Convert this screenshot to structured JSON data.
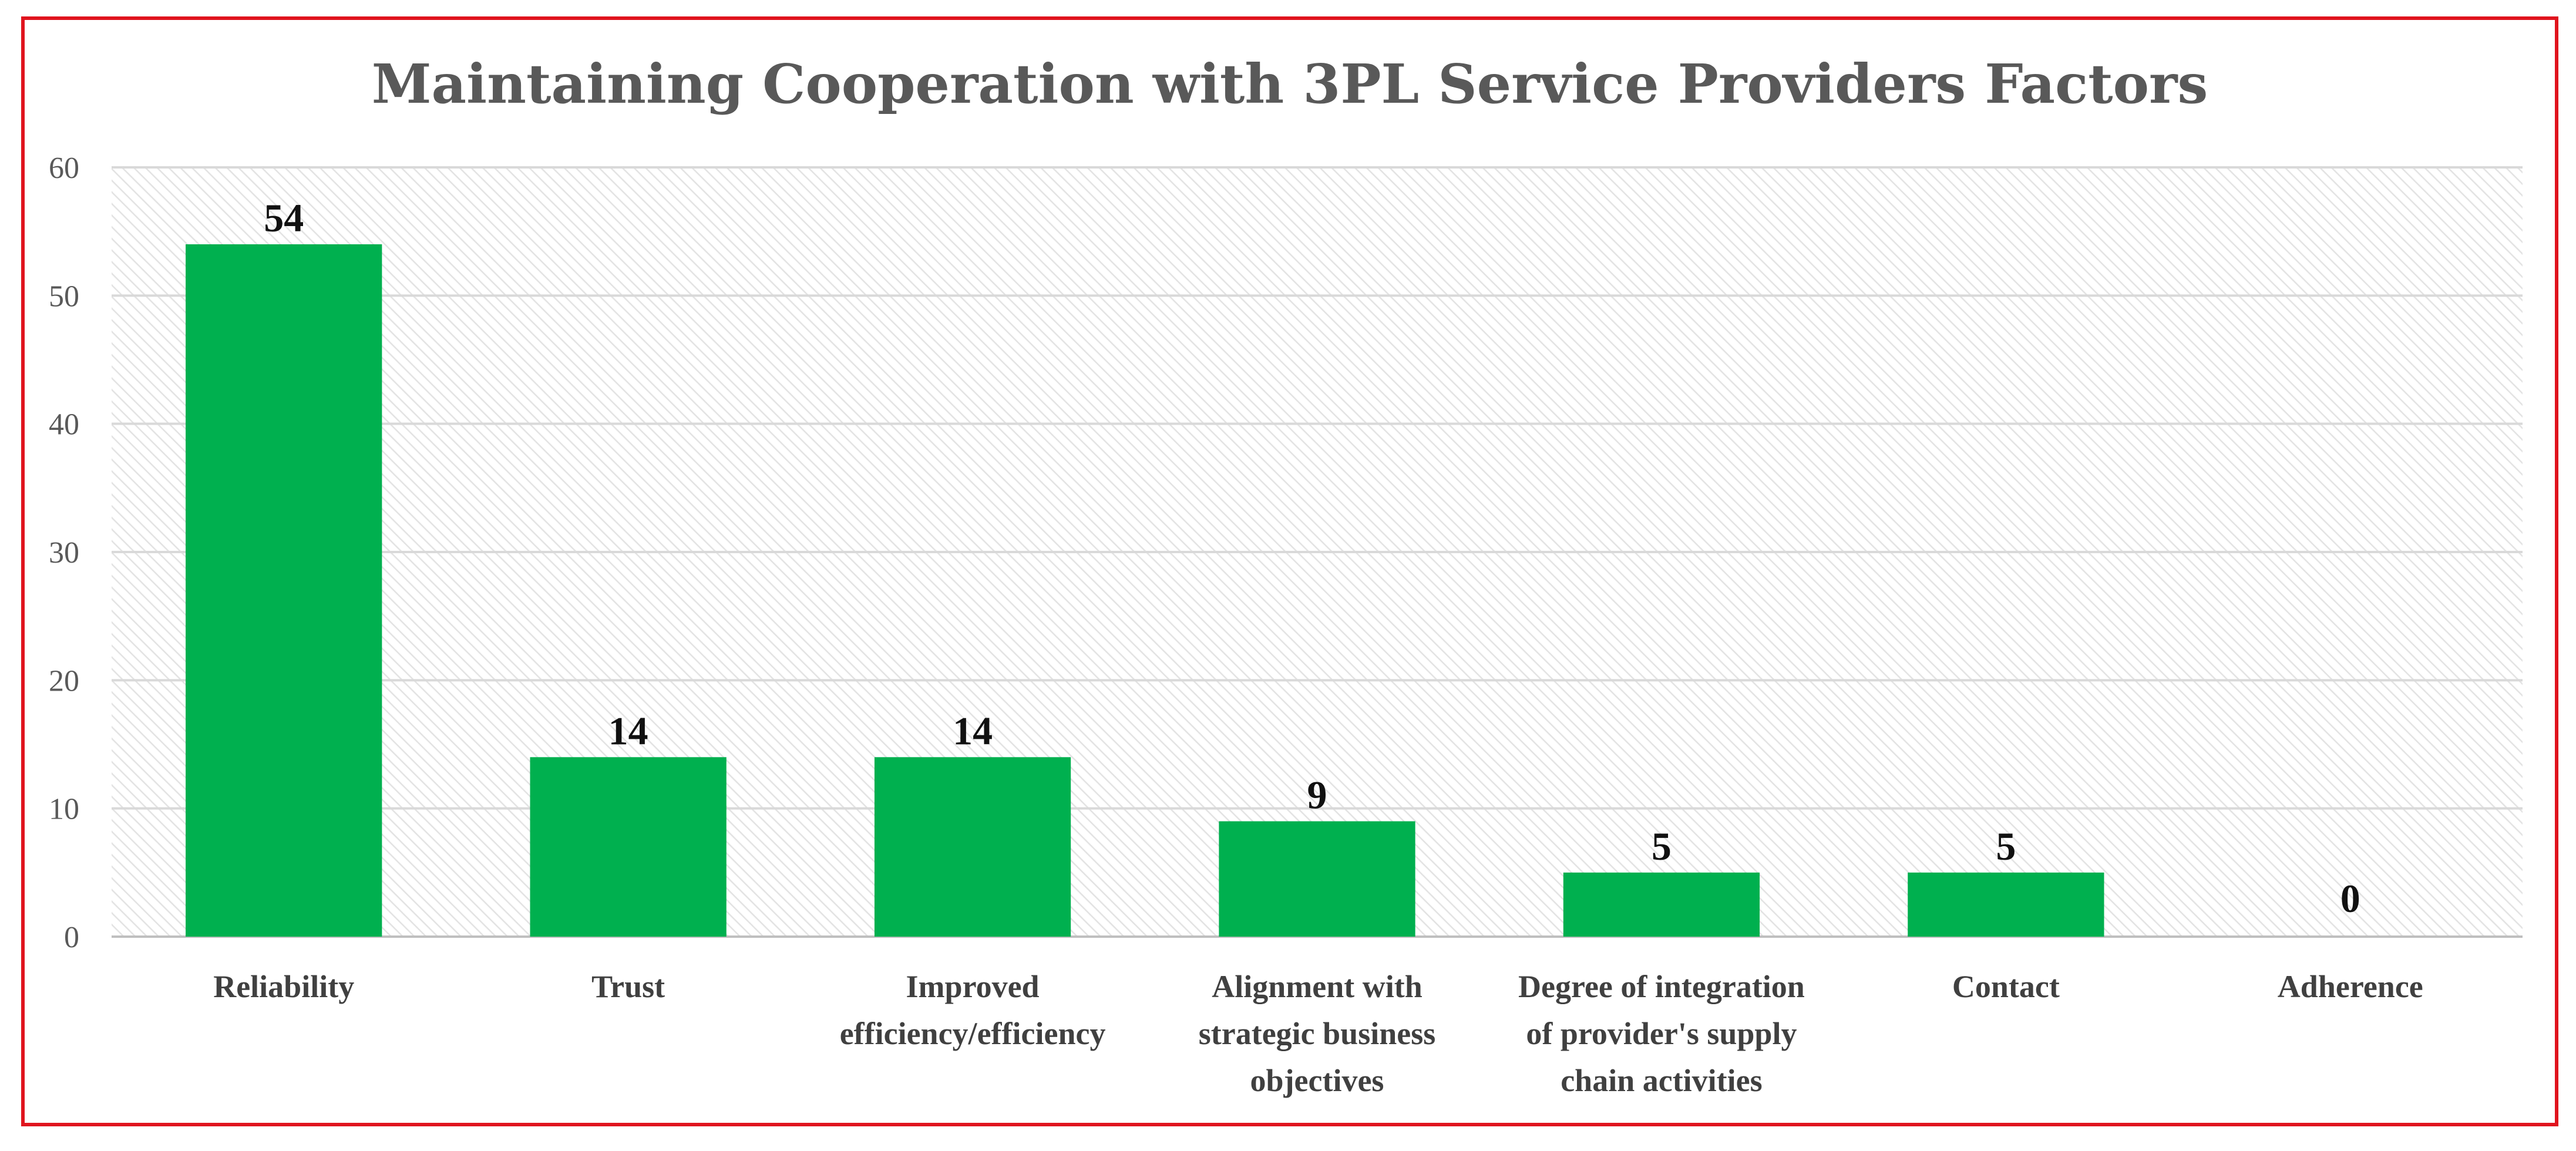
{
  "chart_data": {
    "type": "bar",
    "title": "Maintaining Cooperation with 3PL Service Providers Factors",
    "categories": [
      [
        "Reliability"
      ],
      [
        "Trust"
      ],
      [
        "Improved",
        "efficiency/efficiency"
      ],
      [
        "Alignment with",
        "strategic business",
        "objectives"
      ],
      [
        "Degree of integration",
        "of provider's supply",
        "chain activities"
      ],
      [
        "Contact"
      ],
      [
        "Adherence"
      ]
    ],
    "values": [
      54,
      14,
      14,
      9,
      5,
      5,
      0
    ],
    "data_labels": [
      "54",
      "14",
      "14",
      "9",
      "5",
      "5",
      "0"
    ],
    "ylim": [
      0,
      60
    ],
    "yticks": [
      "0",
      "10",
      "20",
      "30",
      "40",
      "50",
      "60"
    ],
    "xlabel": "",
    "ylabel": "",
    "grid": true,
    "bar_color": "#00b04f",
    "border_color": "#e0141e",
    "gridline_color": "#d9d9d9",
    "plot_hatch_color": "#e3e3e3"
  }
}
